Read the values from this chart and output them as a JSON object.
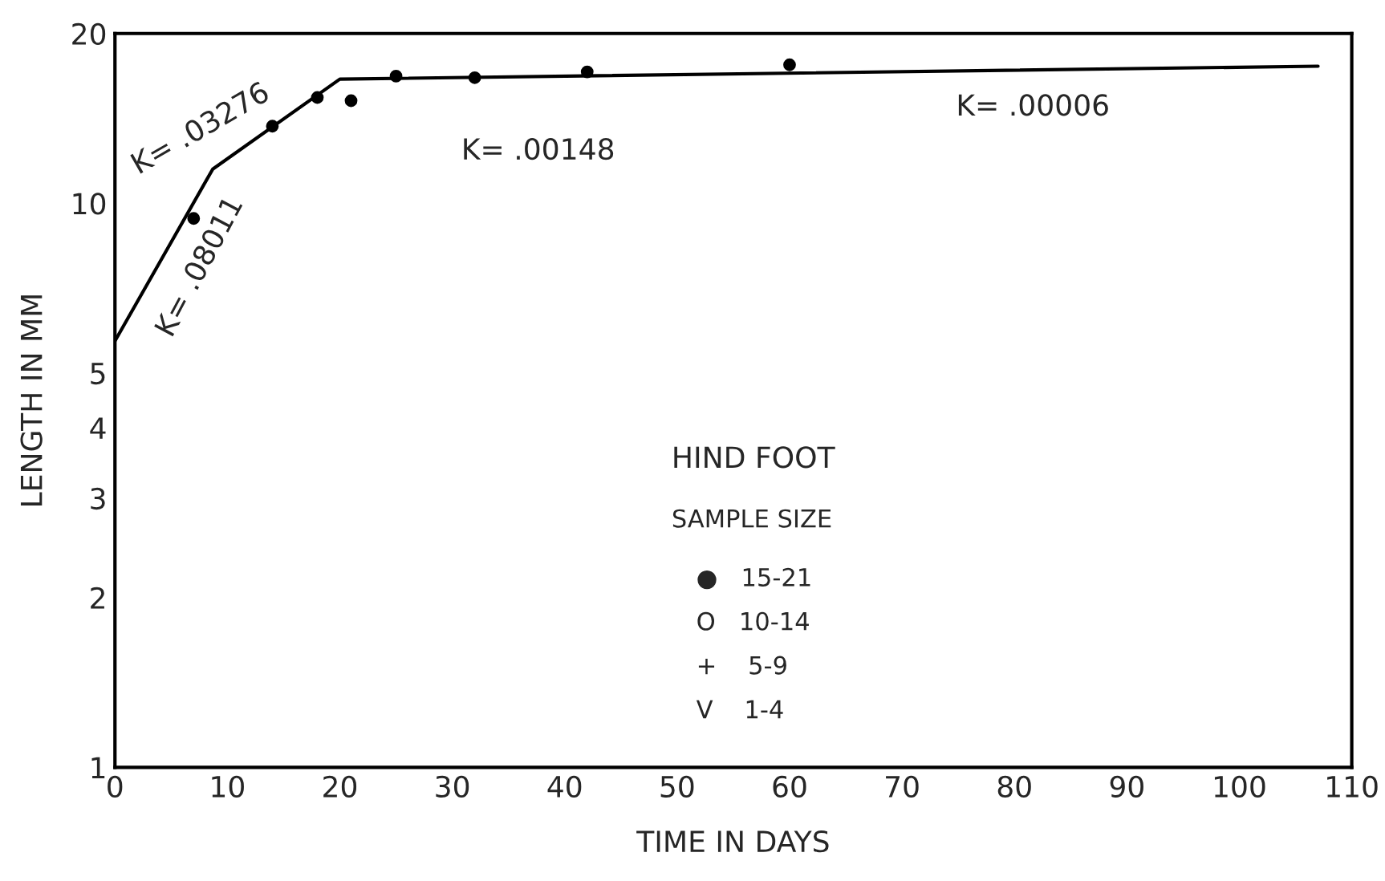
{
  "chart_data": {
    "type": "scatter",
    "xlabel": "TIME IN DAYS",
    "ylabel": "LENGTH IN MM",
    "series": [
      {
        "type": "line",
        "color": "#000000",
        "marker": "none",
        "x": [
          0,
          8.7,
          20,
          107
        ],
        "values": [
          5.7,
          11.5,
          16.6,
          17.5
        ]
      },
      {
        "color": "#000000",
        "marker": "circle",
        "x": [
          7,
          14,
          18,
          21,
          25,
          32,
          42,
          60
        ],
        "values": [
          9.4,
          13.7,
          15.4,
          15.2,
          16.8,
          16.7,
          17.1,
          17.6
        ]
      }
    ],
    "xlim": [
      0,
      110
    ],
    "xticks": [
      0,
      10,
      20,
      30,
      40,
      50,
      60,
      70,
      80,
      90,
      100,
      110
    ],
    "ylim": [
      1,
      20
    ],
    "yticks": [
      1,
      2,
      3,
      4,
      5,
      10,
      20
    ],
    "log": "y",
    "grid": false,
    "legend": false,
    "annotations": [
      "K= .03276",
      "K= .08011",
      "K= .00148",
      "K= .00006",
      "HIND FOOT",
      "SAMPLE SIZE",
      "●   15-21",
      "O   10-14",
      "+    5-9",
      "V    1-4"
    ]
  }
}
